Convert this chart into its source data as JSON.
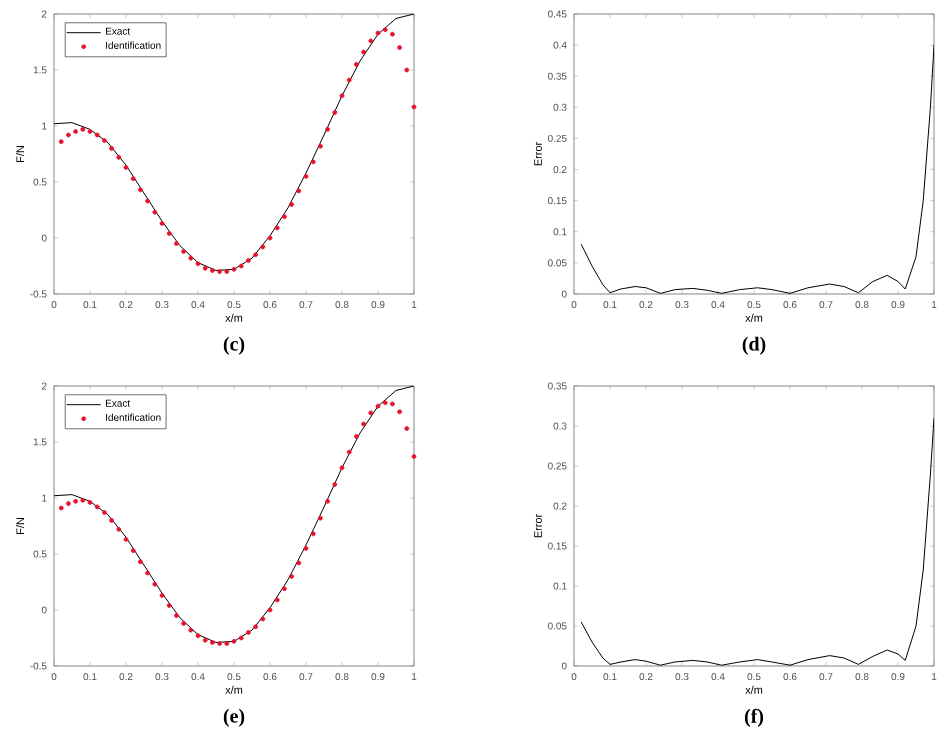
{
  "chart_data": [
    {
      "type": "line",
      "title": "**(c)**",
      "xlabel": "x/m",
      "ylabel": "F/N",
      "xlim": [
        0,
        1
      ],
      "ylim": [
        -0.5,
        2
      ],
      "xticks": [
        0,
        0.1,
        0.2,
        0.3,
        0.4,
        0.5,
        0.6,
        0.7,
        0.8,
        0.9,
        1
      ],
      "yticks": [
        -0.5,
        0,
        0.5,
        1,
        1.5,
        2
      ],
      "legend": "top left",
      "grid": false,
      "series": [
        {
          "name": "Exact",
          "type": "line",
          "color": "#000000",
          "marker": "none",
          "x": [
            0,
            0.05,
            0.1,
            0.15,
            0.2,
            0.25,
            0.3,
            0.35,
            0.4,
            0.45,
            0.5,
            0.55,
            0.6,
            0.65,
            0.7,
            0.75,
            0.8,
            0.85,
            0.9,
            0.95,
            1.0
          ],
          "values": [
            1.02,
            1.03,
            0.97,
            0.85,
            0.65,
            0.4,
            0.15,
            -0.07,
            -0.22,
            -0.29,
            -0.28,
            -0.18,
            0.02,
            0.27,
            0.58,
            0.92,
            1.27,
            1.58,
            1.82,
            1.96,
            2.0
          ]
        },
        {
          "name": "Identification",
          "type": "scatter",
          "color": "#e8112d",
          "marker": "circle",
          "x": [
            0.02,
            0.04,
            0.06,
            0.08,
            0.1,
            0.12,
            0.14,
            0.16,
            0.18,
            0.2,
            0.22,
            0.24,
            0.26,
            0.28,
            0.3,
            0.32,
            0.34,
            0.36,
            0.38,
            0.4,
            0.42,
            0.44,
            0.46,
            0.48,
            0.5,
            0.52,
            0.54,
            0.56,
            0.58,
            0.6,
            0.62,
            0.64,
            0.66,
            0.68,
            0.7,
            0.72,
            0.74,
            0.76,
            0.78,
            0.8,
            0.82,
            0.84,
            0.86,
            0.88,
            0.9,
            0.92,
            0.94,
            0.96,
            0.98,
            1.0
          ],
          "values": [
            0.86,
            0.92,
            0.95,
            0.97,
            0.95,
            0.92,
            0.87,
            0.8,
            0.72,
            0.63,
            0.53,
            0.43,
            0.33,
            0.23,
            0.13,
            0.04,
            -0.05,
            -0.12,
            -0.18,
            -0.23,
            -0.27,
            -0.29,
            -0.3,
            -0.3,
            -0.28,
            -0.25,
            -0.2,
            -0.15,
            -0.08,
            0.0,
            0.09,
            0.19,
            0.3,
            0.42,
            0.55,
            0.68,
            0.82,
            0.97,
            1.12,
            1.27,
            1.41,
            1.55,
            1.66,
            1.76,
            1.83,
            1.86,
            1.82,
            1.7,
            1.5,
            1.17
          ]
        }
      ]
    },
    {
      "type": "line",
      "title": "**(d)**",
      "xlabel": "x/m",
      "ylabel": "Error",
      "xlim": [
        0,
        1
      ],
      "ylim": [
        0,
        0.45
      ],
      "xticks": [
        0,
        0.1,
        0.2,
        0.3,
        0.4,
        0.5,
        0.6,
        0.7,
        0.8,
        0.9,
        1
      ],
      "yticks": [
        0,
        0.05,
        0.1,
        0.15,
        0.2,
        0.25,
        0.3,
        0.35,
        0.4,
        0.45
      ],
      "grid": false,
      "series": [
        {
          "type": "line",
          "color": "#000000",
          "marker": "none",
          "x": [
            0.02,
            0.05,
            0.08,
            0.1,
            0.13,
            0.17,
            0.2,
            0.24,
            0.28,
            0.33,
            0.37,
            0.41,
            0.46,
            0.51,
            0.55,
            0.6,
            0.65,
            0.71,
            0.75,
            0.79,
            0.83,
            0.87,
            0.9,
            0.92,
            0.95,
            0.97,
            0.99,
            1.0
          ],
          "values": [
            0.08,
            0.045,
            0.015,
            0.002,
            0.008,
            0.012,
            0.01,
            0.001,
            0.007,
            0.009,
            0.006,
            0.001,
            0.007,
            0.01,
            0.007,
            0.001,
            0.01,
            0.016,
            0.012,
            0.002,
            0.02,
            0.03,
            0.02,
            0.008,
            0.06,
            0.15,
            0.3,
            0.4
          ]
        }
      ]
    },
    {
      "type": "line",
      "title": "**(e)**",
      "xlabel": "x/m",
      "ylabel": "F/N",
      "xlim": [
        0,
        1
      ],
      "ylim": [
        -0.5,
        2
      ],
      "xticks": [
        0,
        0.1,
        0.2,
        0.3,
        0.4,
        0.5,
        0.6,
        0.7,
        0.8,
        0.9,
        1
      ],
      "yticks": [
        -0.5,
        0,
        0.5,
        1,
        1.5,
        2
      ],
      "legend": "top left",
      "grid": false,
      "series": [
        {
          "name": "Exact",
          "type": "line",
          "color": "#000000",
          "marker": "none",
          "x": [
            0,
            0.05,
            0.1,
            0.15,
            0.2,
            0.25,
            0.3,
            0.35,
            0.4,
            0.45,
            0.5,
            0.55,
            0.6,
            0.65,
            0.7,
            0.75,
            0.8,
            0.85,
            0.9,
            0.95,
            1.0
          ],
          "values": [
            1.02,
            1.03,
            0.97,
            0.85,
            0.65,
            0.4,
            0.15,
            -0.07,
            -0.22,
            -0.29,
            -0.28,
            -0.18,
            0.02,
            0.27,
            0.58,
            0.92,
            1.27,
            1.58,
            1.82,
            1.96,
            2.0
          ]
        },
        {
          "name": "Identification",
          "type": "scatter",
          "color": "#e8112d",
          "marker": "circle",
          "x": [
            0.02,
            0.04,
            0.06,
            0.08,
            0.1,
            0.12,
            0.14,
            0.16,
            0.18,
            0.2,
            0.22,
            0.24,
            0.26,
            0.28,
            0.3,
            0.32,
            0.34,
            0.36,
            0.38,
            0.4,
            0.42,
            0.44,
            0.46,
            0.48,
            0.5,
            0.52,
            0.54,
            0.56,
            0.58,
            0.6,
            0.62,
            0.64,
            0.66,
            0.68,
            0.7,
            0.72,
            0.74,
            0.76,
            0.78,
            0.8,
            0.82,
            0.84,
            0.86,
            0.88,
            0.9,
            0.92,
            0.94,
            0.96,
            0.98,
            1.0
          ],
          "values": [
            0.91,
            0.95,
            0.97,
            0.98,
            0.96,
            0.92,
            0.87,
            0.8,
            0.72,
            0.63,
            0.53,
            0.43,
            0.33,
            0.23,
            0.13,
            0.04,
            -0.05,
            -0.12,
            -0.18,
            -0.23,
            -0.27,
            -0.29,
            -0.3,
            -0.3,
            -0.28,
            -0.25,
            -0.2,
            -0.15,
            -0.08,
            0.0,
            0.09,
            0.19,
            0.3,
            0.42,
            0.55,
            0.68,
            0.82,
            0.97,
            1.12,
            1.27,
            1.41,
            1.55,
            1.66,
            1.76,
            1.82,
            1.85,
            1.84,
            1.77,
            1.62,
            1.37
          ]
        }
      ]
    },
    {
      "type": "line",
      "title": "**(f)**",
      "xlabel": "x/m",
      "ylabel": "Error",
      "xlim": [
        0,
        1
      ],
      "ylim": [
        0,
        0.35
      ],
      "xticks": [
        0,
        0.1,
        0.2,
        0.3,
        0.4,
        0.5,
        0.6,
        0.7,
        0.8,
        0.9,
        1
      ],
      "yticks": [
        0,
        0.05,
        0.1,
        0.15,
        0.2,
        0.25,
        0.3,
        0.35
      ],
      "grid": false,
      "series": [
        {
          "type": "line",
          "color": "#000000",
          "marker": "none",
          "x": [
            0.02,
            0.05,
            0.08,
            0.1,
            0.13,
            0.17,
            0.2,
            0.24,
            0.28,
            0.33,
            0.37,
            0.41,
            0.46,
            0.51,
            0.55,
            0.6,
            0.65,
            0.71,
            0.75,
            0.79,
            0.83,
            0.87,
            0.9,
            0.92,
            0.95,
            0.97,
            0.99,
            1.0
          ],
          "values": [
            0.055,
            0.03,
            0.01,
            0.002,
            0.005,
            0.008,
            0.006,
            0.001,
            0.005,
            0.007,
            0.005,
            0.001,
            0.005,
            0.008,
            0.005,
            0.001,
            0.008,
            0.013,
            0.01,
            0.002,
            0.012,
            0.02,
            0.015,
            0.007,
            0.05,
            0.12,
            0.24,
            0.31
          ]
        }
      ]
    }
  ]
}
